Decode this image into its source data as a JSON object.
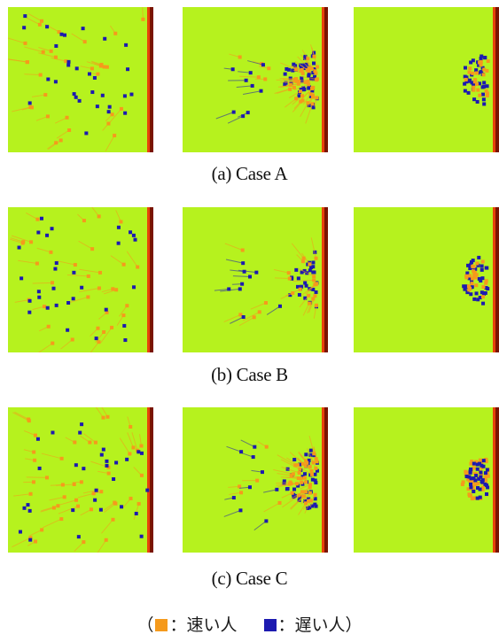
{
  "colors": {
    "background_field": "#b6f21e",
    "wall_inner": "#e8420a",
    "wall_outer": "#7a1400",
    "fast_person": "#f59a1c",
    "slow_person": "#1c1ab0"
  },
  "cases": [
    {
      "caption": "(a) Case A"
    },
    {
      "caption": "(b) Case B"
    },
    {
      "caption": "(c) Case C"
    }
  ],
  "legend": {
    "open_paren": "（",
    "fast_symbol": "■",
    "fast_label": "：速い人",
    "slow_symbol": "■",
    "slow_label": "：遅い人",
    "close_paren": "）"
  }
}
